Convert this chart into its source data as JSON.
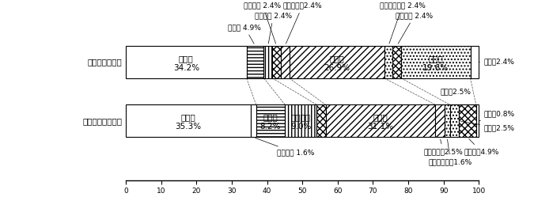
{
  "row1_label": "入院をしている",
  "row2_label": "入院をしていない",
  "row1_segs": [
    {
      "label": "家族等",
      "value": 34.2,
      "hatch": "",
      "text": "家族等\n34.2%"
    },
    {
      "label": "友人等",
      "value": 4.9,
      "hatch": "----",
      "text": ""
    },
    {
      "label": "施設職員",
      "value": 2.4,
      "hatch": "||||",
      "text": ""
    },
    {
      "label": "相談機関",
      "value": 2.4,
      "hatch": "xxxx",
      "text": ""
    },
    {
      "label": "障害者団体",
      "value": 2.4,
      "hatch": "////",
      "text": ""
    },
    {
      "label": "主治医",
      "value": 26.9,
      "hatch": "////",
      "text": "主治医\n26.9%"
    },
    {
      "label": "民生児童委員",
      "value": 2.4,
      "hatch": "....",
      "text": ""
    },
    {
      "label": "病院職員",
      "value": 2.4,
      "hatch": "xxxx",
      "text": ""
    },
    {
      "label": "看護師",
      "value": 19.6,
      "hatch": "....",
      "text": "看護師\n19.6%"
    },
    {
      "label": "無回答",
      "value": 2.4,
      "hatch": "",
      "text": ""
    }
  ],
  "row2_segs": [
    {
      "label": "家族等",
      "value": 35.3,
      "hatch": "",
      "text": "家族等\n35.3%"
    },
    {
      "label": "近所の人",
      "value": 1.6,
      "hatch": "",
      "text": ""
    },
    {
      "label": "友人等",
      "value": 8.2,
      "hatch": "----",
      "text": "友人等\n8.2%"
    },
    {
      "label": "施設職員",
      "value": 9.0,
      "hatch": "||||",
      "text": "施設職員\n9.0%"
    },
    {
      "label": "相談機関",
      "value": 2.5,
      "hatch": "xxxx",
      "text": ""
    },
    {
      "label": "主治医",
      "value": 31.1,
      "hatch": "////",
      "text": "主治医\n31.1%"
    },
    {
      "label": "障害者団体",
      "value": 2.5,
      "hatch": "////",
      "text": ""
    },
    {
      "label": "民生児童委員",
      "value": 1.6,
      "hatch": "....",
      "text": ""
    },
    {
      "label": "看護師",
      "value": 2.5,
      "hatch": "....",
      "text": ""
    },
    {
      "label": "病院職員",
      "value": 4.9,
      "hatch": "xxxx",
      "text": ""
    },
    {
      "label": "無回答",
      "value": 0.8,
      "hatch": "",
      "text": ""
    }
  ],
  "xticks": [
    0,
    10,
    20,
    30,
    40,
    50,
    60,
    70,
    80,
    90,
    100
  ],
  "bar_height": 0.55,
  "font_size": 7.5,
  "ann_font_size": 6.5
}
